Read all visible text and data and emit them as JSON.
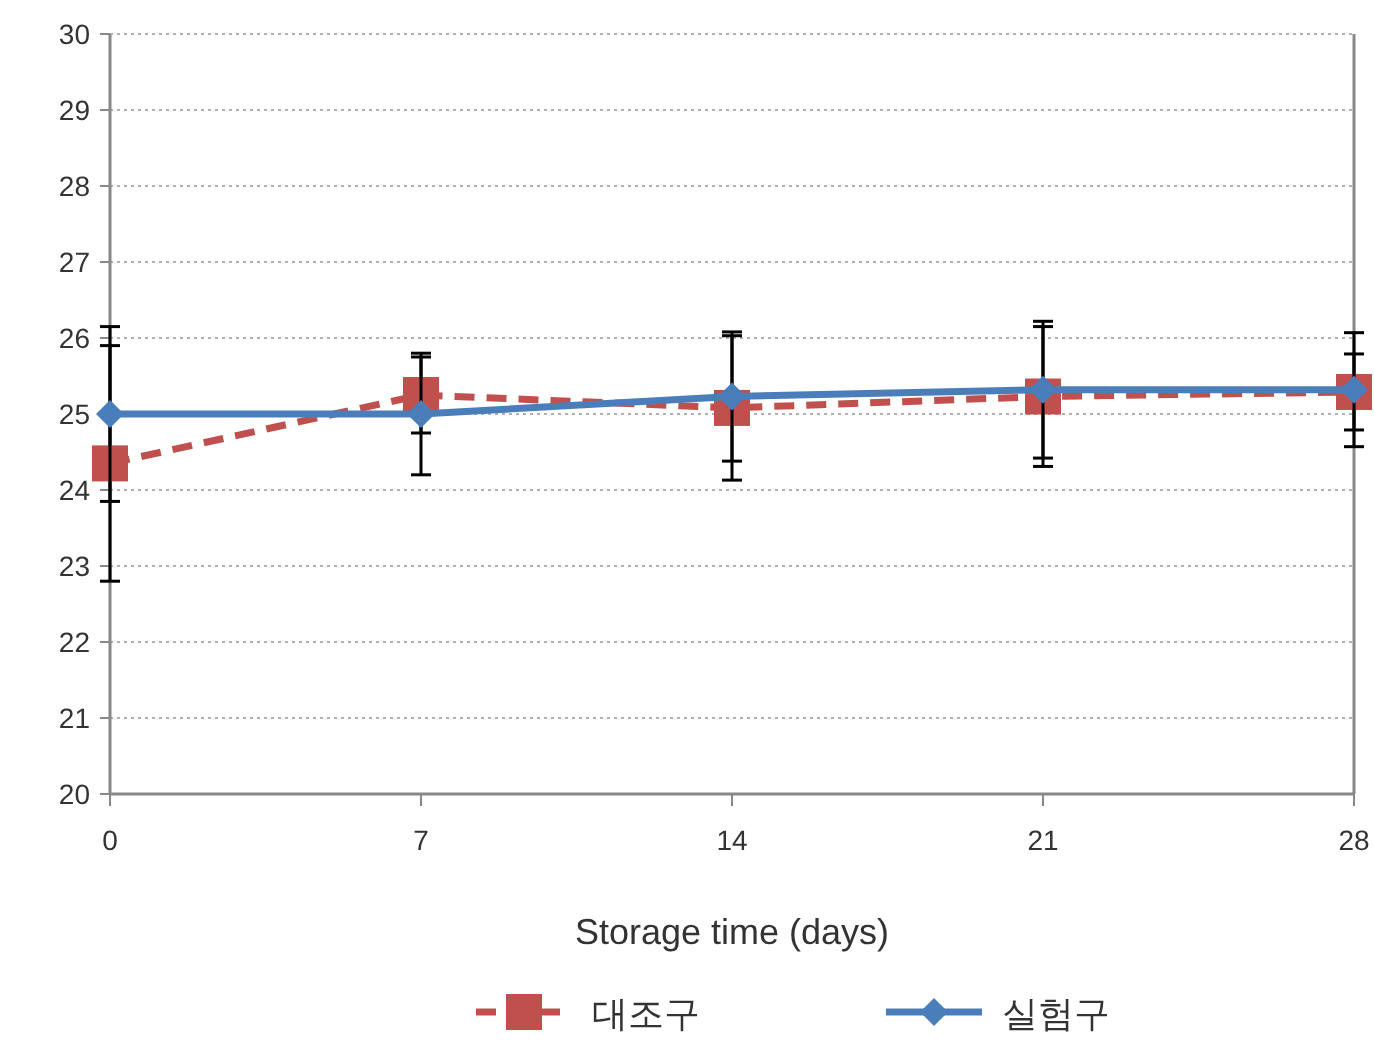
{
  "chart_data": {
    "type": "line",
    "xlabel": "Storage time (days)",
    "x": [
      0,
      7,
      14,
      21,
      28
    ],
    "xlim": [
      0,
      28
    ],
    "xticks": [
      0,
      7,
      14,
      21,
      28
    ],
    "ylim": [
      20,
      30
    ],
    "yticks": [
      20,
      21,
      22,
      23,
      24,
      25,
      26,
      27,
      28,
      29,
      30
    ],
    "grid": "y",
    "legend": "bottom",
    "series": [
      {
        "name": "대조구",
        "color": "#c0504d",
        "values": [
          24.35,
          25.25,
          25.08,
          25.23,
          25.29
        ],
        "errors": [
          1.55,
          0.5,
          0.95,
          0.92,
          0.5
        ],
        "marker": "square",
        "line_style": "dashed"
      },
      {
        "name": "실험구",
        "color": "#4a7ebb",
        "values": [
          25.0,
          25.0,
          25.23,
          25.32,
          25.32
        ],
        "errors": [
          1.15,
          0.8,
          0.85,
          0.9,
          0.75
        ],
        "marker": "diamond",
        "line_style": "solid"
      }
    ]
  }
}
